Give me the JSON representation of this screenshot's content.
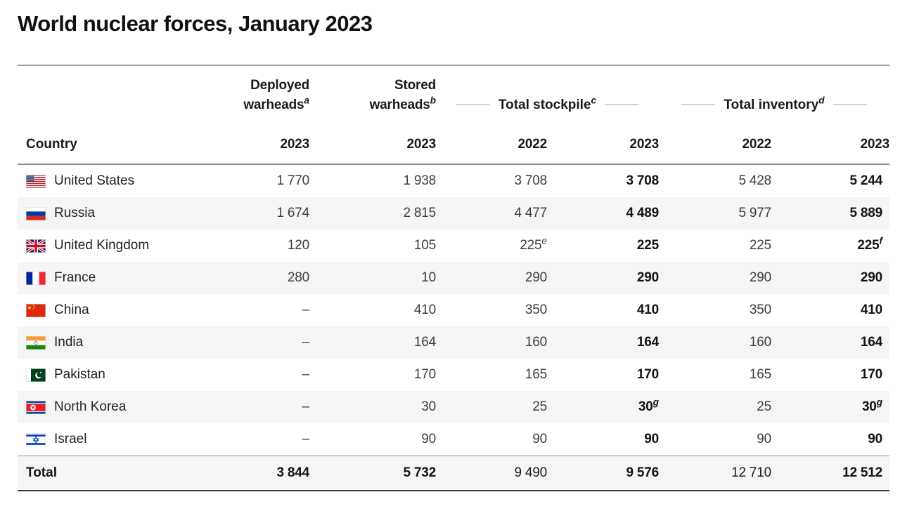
{
  "title": "World nuclear forces, January 2023",
  "table": {
    "country_header": "Country",
    "group_headers": [
      {
        "label": "Deployed warheads",
        "sup": "a"
      },
      {
        "label": "Stored warheads",
        "sup": "b"
      },
      {
        "label": "Total stockpile",
        "sup": "c"
      },
      {
        "label": "Total inventory",
        "sup": "d"
      }
    ],
    "year_headers": [
      "2023",
      "2023",
      "2022",
      "2023",
      "2022",
      "2023"
    ],
    "rows": [
      {
        "country": "United States",
        "flag": "us-flag",
        "cells": [
          {
            "v": "1 770"
          },
          {
            "v": "1 938"
          },
          {
            "v": "3 708"
          },
          {
            "v": "3 708",
            "bold": true
          },
          {
            "v": "5 428"
          },
          {
            "v": "5 244",
            "bold": true
          }
        ]
      },
      {
        "country": "Russia",
        "flag": "russia-flag",
        "cells": [
          {
            "v": "1 674"
          },
          {
            "v": "2 815"
          },
          {
            "v": "4 477"
          },
          {
            "v": "4 489",
            "bold": true
          },
          {
            "v": "5 977"
          },
          {
            "v": "5 889",
            "bold": true
          }
        ]
      },
      {
        "country": "United Kingdom",
        "flag": "uk-flag",
        "cells": [
          {
            "v": "120"
          },
          {
            "v": "105"
          },
          {
            "v": "225",
            "s": "e"
          },
          {
            "v": "225",
            "bold": true
          },
          {
            "v": "225"
          },
          {
            "v": "225",
            "s": "f",
            "bold": true
          }
        ]
      },
      {
        "country": "France",
        "flag": "france-flag",
        "cells": [
          {
            "v": "280"
          },
          {
            "v": "10"
          },
          {
            "v": "290"
          },
          {
            "v": "290",
            "bold": true
          },
          {
            "v": "290"
          },
          {
            "v": "290",
            "bold": true
          }
        ]
      },
      {
        "country": "China",
        "flag": "china-flag",
        "cells": [
          {
            "v": "–"
          },
          {
            "v": "410"
          },
          {
            "v": "350"
          },
          {
            "v": "410",
            "bold": true
          },
          {
            "v": "350"
          },
          {
            "v": "410",
            "bold": true
          }
        ]
      },
      {
        "country": "India",
        "flag": "india-flag",
        "cells": [
          {
            "v": "–"
          },
          {
            "v": "164"
          },
          {
            "v": "160"
          },
          {
            "v": "164",
            "bold": true
          },
          {
            "v": "160"
          },
          {
            "v": "164",
            "bold": true
          }
        ]
      },
      {
        "country": "Pakistan",
        "flag": "pakistan-flag",
        "cells": [
          {
            "v": "–"
          },
          {
            "v": "170"
          },
          {
            "v": "165"
          },
          {
            "v": "170",
            "bold": true
          },
          {
            "v": "165"
          },
          {
            "v": "170",
            "bold": true
          }
        ]
      },
      {
        "country": "North Korea",
        "flag": "north-korea-flag",
        "cells": [
          {
            "v": "–"
          },
          {
            "v": "30"
          },
          {
            "v": "25"
          },
          {
            "v": "30",
            "s": "g",
            "bold": true
          },
          {
            "v": "25"
          },
          {
            "v": "30",
            "s": "g",
            "bold": true
          }
        ]
      },
      {
        "country": "Israel",
        "flag": "israel-flag",
        "cells": [
          {
            "v": "–"
          },
          {
            "v": "90"
          },
          {
            "v": "90"
          },
          {
            "v": "90",
            "bold": true
          },
          {
            "v": "90"
          },
          {
            "v": "90",
            "bold": true
          }
        ]
      }
    ],
    "total_row": {
      "label": "Total",
      "cells": [
        {
          "v": "3 844",
          "bold": true
        },
        {
          "v": "5 732",
          "bold": true
        },
        {
          "v": "9 490"
        },
        {
          "v": "9 576",
          "bold": true
        },
        {
          "v": "12 710"
        },
        {
          "v": "12 512",
          "bold": true
        }
      ]
    }
  },
  "colors": {
    "zebra": "#f5f5f6",
    "rule_light": "#9c9c9c",
    "rule_medium": "#8a8a8a",
    "rule_dark": "#3a3a3a",
    "dash": "#d4d4d4",
    "text_regular": "#3d3d3d",
    "text_bold": "#141414"
  }
}
